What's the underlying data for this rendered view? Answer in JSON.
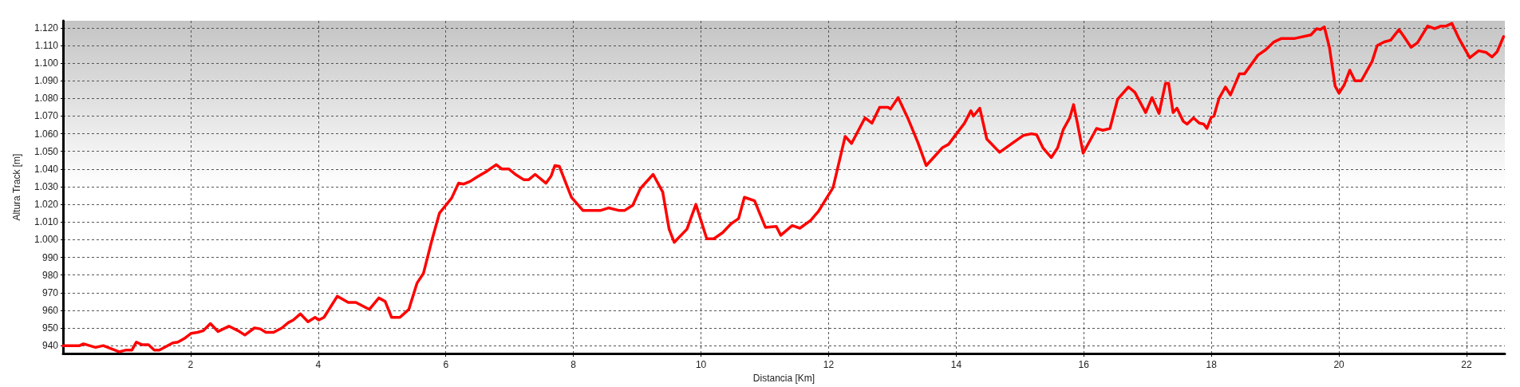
{
  "chart_data": {
    "type": "line",
    "xlabel": "Distancia [Km]",
    "ylabel": "Altura Track [m]",
    "xlim": [
      0,
      22.6
    ],
    "ylim": [
      935.5,
      1124
    ],
    "xticks": [
      2,
      4,
      6,
      8,
      10,
      12,
      14,
      16,
      18,
      20,
      22
    ],
    "yticks": [
      940,
      950,
      960,
      970,
      980,
      990,
      {
        "value": 1000,
        "label": "1.000"
      },
      {
        "value": 1010,
        "label": "1.010"
      },
      {
        "value": 1020,
        "label": "1.020"
      },
      {
        "value": 1030,
        "label": "1.030"
      },
      {
        "value": 1040,
        "label": "1.040"
      },
      {
        "value": 1050,
        "label": "1.050"
      },
      {
        "value": 1060,
        "label": "1.060"
      },
      {
        "value": 1070,
        "label": "1.070"
      },
      {
        "value": 1080,
        "label": "1.080"
      },
      {
        "value": 1090,
        "label": "1.090"
      },
      {
        "value": 1100,
        "label": "1.100"
      },
      {
        "value": 1110,
        "label": "1.110"
      },
      {
        "value": 1120,
        "label": "1.120"
      }
    ],
    "grid": true,
    "marker": "none",
    "line_style": "solid",
    "series": [
      {
        "color": "#ff0000",
        "x": [
          0,
          0.26,
          0.32,
          0.51,
          0.63,
          0.88,
          0.99,
          1.08,
          1.15,
          1.24,
          1.34,
          1.43,
          1.51,
          1.72,
          1.8,
          1.9,
          2.01,
          2.11,
          2.2,
          2.31,
          2.43,
          2.6,
          2.74,
          2.85,
          3.0,
          3.09,
          3.18,
          3.3,
          3.43,
          3.53,
          3.61,
          3.72,
          3.84,
          3.95,
          4.01,
          4.09,
          4.3,
          4.47,
          4.59,
          4.8,
          4.95,
          5.05,
          5.15,
          5.28,
          5.42,
          5.55,
          5.65,
          5.78,
          5.9,
          6.09,
          6.2,
          6.28,
          6.38,
          6.49,
          6.63,
          6.79,
          6.88,
          6.99,
          7.09,
          7.22,
          7.3,
          7.4,
          7.57,
          7.65,
          7.71,
          7.78,
          7.97,
          8.15,
          8.42,
          8.55,
          8.72,
          8.8,
          8.93,
          9.05,
          9.25,
          9.4,
          9.5,
          9.58,
          9.78,
          9.92,
          10.09,
          10.2,
          10.34,
          10.47,
          10.59,
          10.68,
          10.84,
          11.01,
          11.18,
          11.25,
          11.43,
          11.55,
          11.72,
          11.84,
          12.07,
          12.26,
          12.36,
          12.57,
          12.68,
          12.8,
          12.93,
          12.97,
          13.09,
          13.24,
          13.4,
          13.53,
          13.67,
          13.78,
          13.88,
          14.13,
          14.23,
          14.27,
          14.37,
          14.48,
          14.68,
          15.05,
          15.18,
          15.26,
          15.36,
          15.49,
          15.59,
          15.68,
          15.78,
          15.84,
          15.9,
          15.99,
          16.2,
          16.3,
          16.41,
          16.53,
          16.7,
          16.8,
          16.97,
          17.07,
          17.18,
          17.28,
          17.33,
          17.4,
          17.46,
          17.56,
          17.62,
          17.72,
          17.81,
          17.88,
          17.93,
          18,
          18.04,
          18.12,
          18.22,
          18.3,
          18.44,
          18.52,
          18.73,
          18.85,
          18.98,
          19.1,
          19.31,
          19.56,
          19.65,
          19.71,
          19.77,
          19.85,
          19.94,
          20,
          20.08,
          20.17,
          20.25,
          20.35,
          20.52,
          20.6,
          20.71,
          20.81,
          20.94,
          21.02,
          21.13,
          21.23,
          21.39,
          21.5,
          21.6,
          21.68,
          21.77,
          21.88,
          22.05,
          22.19,
          22.31,
          22.4,
          22.48,
          22.58
        ],
        "values": [
          940,
          940,
          941,
          939,
          940,
          936.5,
          937.5,
          937.5,
          942,
          940.5,
          940.5,
          937.5,
          937.5,
          941.5,
          942,
          944,
          947,
          947.5,
          948.5,
          952.5,
          948,
          951,
          948.5,
          946,
          950,
          949.5,
          947.5,
          947.5,
          950,
          953,
          954.5,
          958,
          953.5,
          956,
          954.5,
          956,
          968,
          964.5,
          964.5,
          960.5,
          967,
          965,
          956,
          956,
          960.5,
          975.5,
          981,
          999.5,
          1015,
          1023.5,
          1032,
          1031.5,
          1033,
          1035.5,
          1038.5,
          1042.5,
          1040,
          1040,
          1037,
          1034,
          1034,
          1037,
          1032,
          1036,
          1042,
          1041.5,
          1024,
          1016.5,
          1016.5,
          1018,
          1016.5,
          1016.5,
          1019.5,
          1029,
          1037,
          1027,
          1006,
          998.5,
          1006,
          1020,
          1000.5,
          1000.5,
          1004,
          1009,
          1012,
          1024,
          1022,
          1007,
          1007.5,
          1002.5,
          1008,
          1006.5,
          1011,
          1016,
          1029.5,
          1058.5,
          1054.5,
          1069,
          1066,
          1075,
          1075,
          1074,
          1080.5,
          1069,
          1055,
          1042,
          1047.5,
          1052,
          1054,
          1066,
          1073,
          1070,
          1074.5,
          1057,
          1049.5,
          1059,
          1060,
          1059.5,
          1052,
          1046.5,
          1052,
          1062.5,
          1069,
          1076.5,
          1066,
          1049,
          1063,
          1062,
          1063,
          1079.5,
          1086.5,
          1083.5,
          1072,
          1080.5,
          1071.5,
          1088.5,
          1088.5,
          1072,
          1074.5,
          1067,
          1065.5,
          1069,
          1066,
          1065.5,
          1063,
          1069.5,
          1070,
          1080,
          1086.5,
          1082,
          1094,
          1094,
          1104.5,
          1107.5,
          1112,
          1114,
          1114,
          1116,
          1119.5,
          1119,
          1120.5,
          1109,
          1087,
          1083,
          1087.5,
          1096,
          1090,
          1090,
          1101,
          1110,
          1112,
          1113,
          1119,
          1115,
          1109,
          1111.5,
          1121,
          1119.5,
          1121,
          1121,
          1122.5,
          1114,
          1103,
          1107,
          1106,
          1103.5,
          1106.5,
          1115
        ]
      }
    ]
  }
}
